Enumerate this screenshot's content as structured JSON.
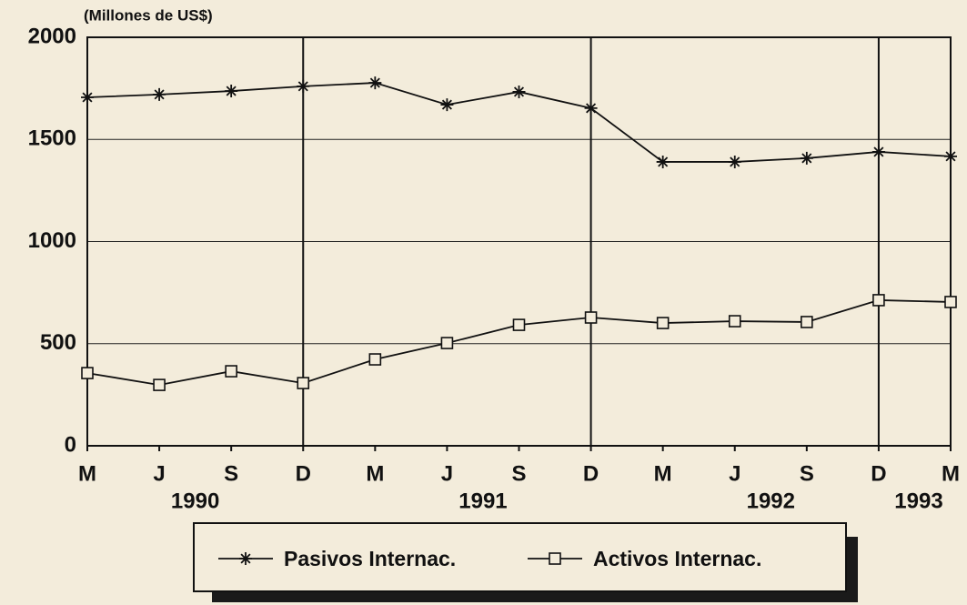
{
  "chart_data": {
    "type": "line",
    "y_label": "(Millones de US$)",
    "categories": [
      "M",
      "J",
      "S",
      "D",
      "M",
      "J",
      "S",
      "D",
      "M",
      "J",
      "S",
      "D",
      "M"
    ],
    "year_labels": [
      "1990",
      "1991",
      "1992",
      "1993"
    ],
    "series": [
      {
        "name": "Pasivos Internac.",
        "color": "#111111",
        "marker": "star",
        "values": [
          1706,
          1720,
          1737,
          1760,
          1777,
          1670,
          1733,
          1653,
          1390,
          1390,
          1408,
          1439,
          1417
        ]
      },
      {
        "name": "Activos Internac.",
        "color": "#111111",
        "marker": "square",
        "values": [
          356,
          298,
          365,
          307,
          423,
          503,
          592,
          628,
          601,
          610,
          606,
          713,
          704
        ]
      }
    ],
    "ylim": [
      0,
      2000
    ],
    "yticks": [
      0,
      500,
      1000,
      1500,
      2000
    ],
    "grid": true
  }
}
